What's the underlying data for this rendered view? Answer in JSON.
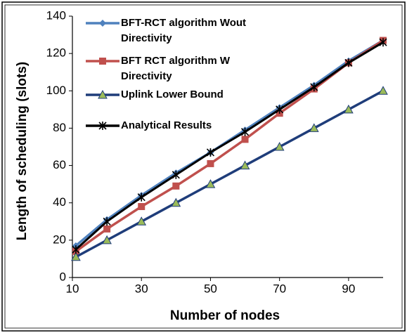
{
  "chart_data": {
    "type": "line",
    "x_label": "Number of nodes",
    "y_label": "Length of scheduling (slots)",
    "x": [
      11,
      20,
      30,
      40,
      50,
      60,
      70,
      80,
      90,
      100
    ],
    "series": [
      {
        "name": "BFT-RCT algorithm Wout Directivity",
        "color": "#4f81bd",
        "marker": "diamond",
        "values": [
          17,
          31,
          44,
          56,
          67,
          79,
          91,
          103,
          116,
          127
        ]
      },
      {
        "name": "BFT RCT algorithm W Directivity",
        "color": "#c0504d",
        "marker": "square",
        "values": [
          14,
          26,
          38,
          49,
          61,
          74,
          88,
          101,
          115,
          127
        ]
      },
      {
        "name": "Uplink Lower Bound",
        "color": "#1f3d7a",
        "marker": "triangle",
        "values": [
          11,
          20,
          30,
          40,
          50,
          60,
          70,
          80,
          90,
          100
        ]
      },
      {
        "name": "Analytical Results",
        "color": "#000000",
        "marker": "cross",
        "values": [
          15,
          30,
          43,
          55,
          67,
          78,
          90,
          102,
          115,
          126
        ]
      }
    ],
    "xlim": [
      10,
      100
    ],
    "xticks": [
      10,
      30,
      50,
      70,
      90
    ],
    "ylim": [
      0,
      140
    ],
    "yticks": [
      0,
      20,
      40,
      60,
      80,
      100,
      120,
      140
    ]
  }
}
